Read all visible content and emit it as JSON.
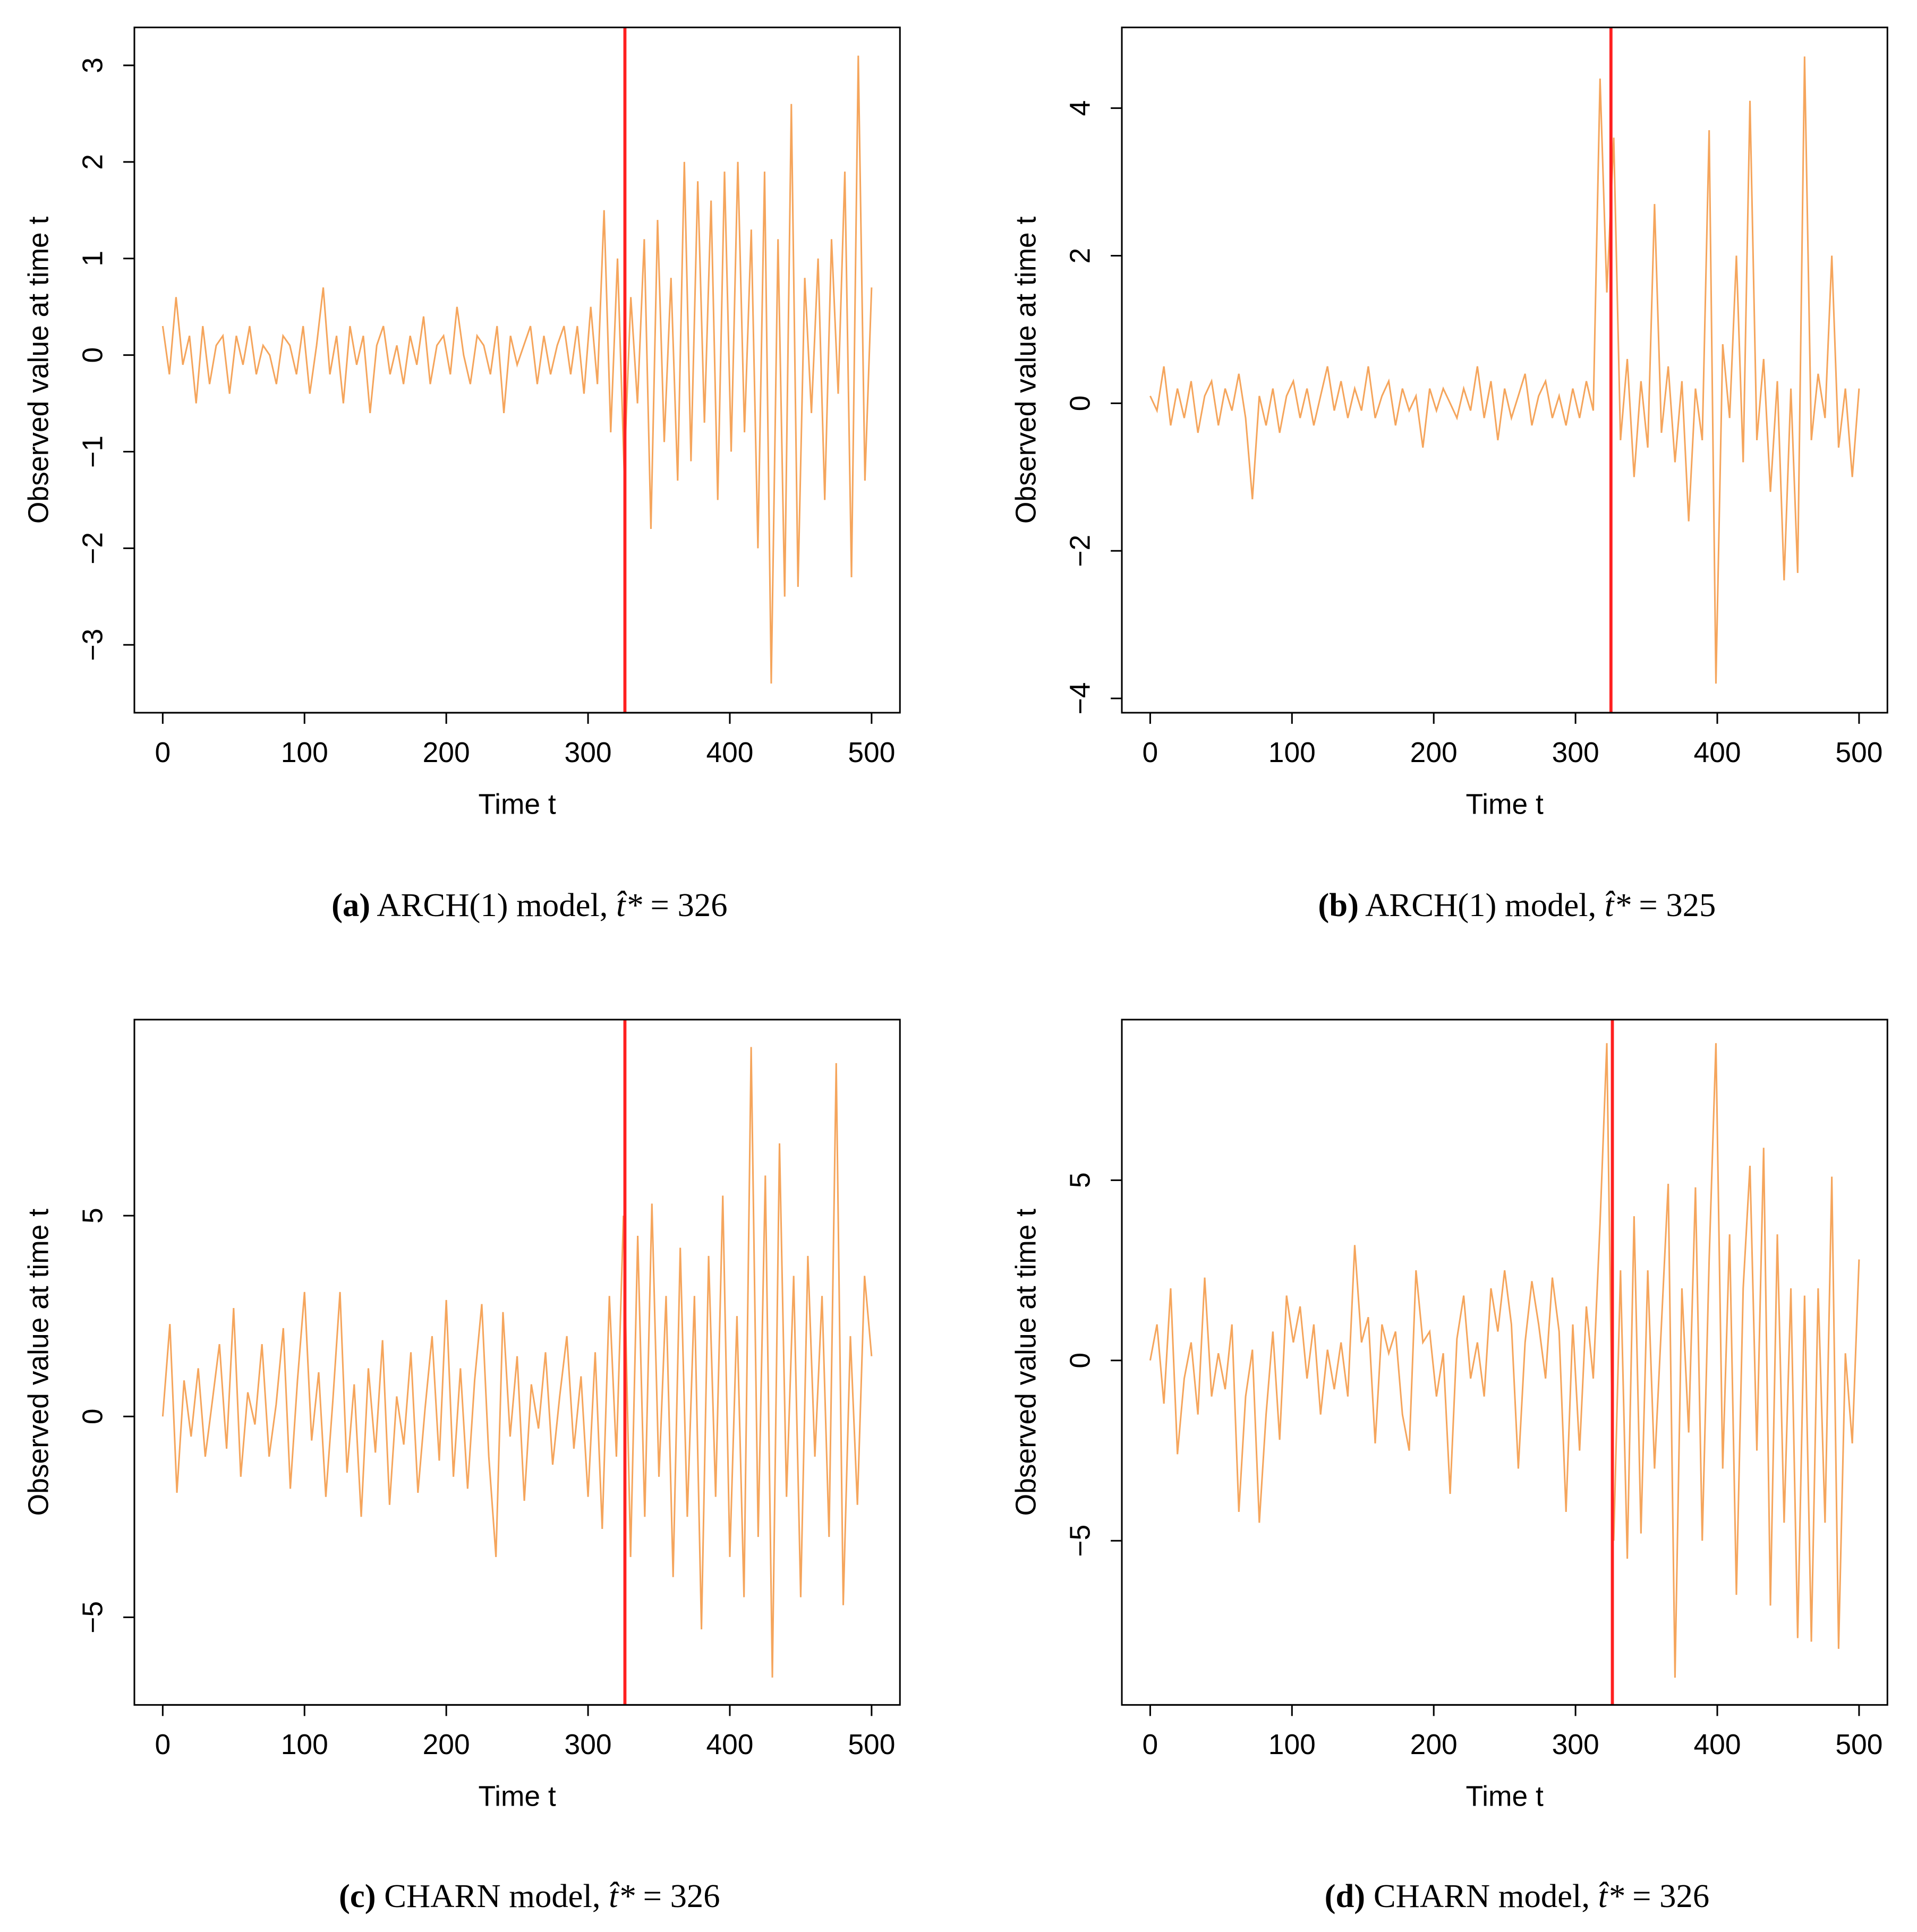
{
  "colors": {
    "series": "#f5a55c",
    "changepoint": "#ff2020",
    "axis": "#000000"
  },
  "chart_data": [
    {
      "type": "line",
      "id": "a",
      "xlabel": "Time t",
      "ylabel": "Observed value at time t",
      "xlim": [
        0,
        500
      ],
      "ylim": [
        -3.44,
        3.13
      ],
      "xticks": [
        "0",
        "100",
        "200",
        "300",
        "400",
        "500"
      ],
      "yticks": [
        "-3",
        "-2",
        "-1",
        "0",
        "1",
        "2",
        "3"
      ],
      "ytick_values": [
        -3,
        -2,
        -1,
        0,
        1,
        2,
        3
      ],
      "changepoint": 326,
      "caption_tag": "(a)",
      "caption_text": " ARCH(1) model, ",
      "caption_value": " = 326",
      "values": [
        0.3,
        -0.2,
        0.6,
        -0.1,
        0.2,
        -0.5,
        0.3,
        -0.3,
        0.1,
        0.2,
        -0.4,
        0.2,
        -0.1,
        0.3,
        -0.2,
        0.1,
        0.0,
        -0.3,
        0.2,
        0.1,
        -0.2,
        0.3,
        -0.4,
        0.1,
        0.7,
        -0.2,
        0.2,
        -0.5,
        0.3,
        -0.1,
        0.2,
        -0.6,
        0.1,
        0.3,
        -0.2,
        0.1,
        -0.3,
        0.2,
        -0.1,
        0.4,
        -0.3,
        0.1,
        0.2,
        -0.2,
        0.5,
        0.0,
        -0.3,
        0.2,
        0.1,
        -0.2,
        0.3,
        -0.6,
        0.2,
        -0.1,
        0.1,
        0.3,
        -0.3,
        0.2,
        -0.2,
        0.1,
        0.3,
        -0.2,
        0.3,
        -0.4,
        0.5,
        -0.3,
        1.5,
        -0.8,
        1.0,
        -1.2,
        0.6,
        -0.5,
        1.2,
        -1.8,
        1.4,
        -0.9,
        0.8,
        -1.3,
        2.0,
        -1.1,
        1.8,
        -0.7,
        1.6,
        -1.5,
        1.9,
        -1.0,
        2.0,
        -0.8,
        1.3,
        -2.0,
        1.9,
        -3.4,
        1.2,
        -2.5,
        2.6,
        -2.4,
        0.8,
        -0.6,
        1.0,
        -1.5,
        1.2,
        -0.4,
        1.9,
        -2.3,
        3.1,
        -1.3,
        0.7
      ]
    },
    {
      "type": "line",
      "id": "b",
      "xlabel": "Time t",
      "ylabel": "Observed value at time t",
      "xlim": [
        0,
        500
      ],
      "ylim": [
        -3.85,
        4.75
      ],
      "xticks": [
        "0",
        "100",
        "200",
        "300",
        "400",
        "500"
      ],
      "yticks": [
        "-4",
        "-2",
        "0",
        "2",
        "4"
      ],
      "ytick_values": [
        -4,
        -2,
        0,
        2,
        4
      ],
      "changepoint": 325,
      "caption_tag": "(b)",
      "caption_text": " ARCH(1) model, ",
      "caption_value": " = 325",
      "values": [
        0.1,
        -0.1,
        0.5,
        -0.3,
        0.2,
        -0.2,
        0.3,
        -0.4,
        0.1,
        0.3,
        -0.3,
        0.2,
        -0.1,
        0.4,
        -0.2,
        -1.3,
        0.1,
        -0.3,
        0.2,
        -0.4,
        0.1,
        0.3,
        -0.2,
        0.2,
        -0.3,
        0.1,
        0.5,
        -0.1,
        0.3,
        -0.2,
        0.2,
        -0.1,
        0.5,
        -0.2,
        0.1,
        0.3,
        -0.3,
        0.2,
        -0.1,
        0.1,
        -0.6,
        0.2,
        -0.1,
        0.2,
        0.0,
        -0.2,
        0.2,
        -0.1,
        0.5,
        -0.2,
        0.3,
        -0.5,
        0.2,
        -0.2,
        0.1,
        0.4,
        -0.3,
        0.1,
        0.3,
        -0.2,
        0.1,
        -0.3,
        0.2,
        -0.2,
        0.3,
        -0.1,
        4.4,
        1.5,
        3.6,
        -0.5,
        0.6,
        -1.0,
        0.3,
        -0.6,
        2.7,
        -0.4,
        0.5,
        -0.8,
        0.3,
        -1.6,
        0.2,
        -0.5,
        3.7,
        -3.8,
        0.8,
        -0.2,
        2.0,
        -0.8,
        4.1,
        -0.5,
        0.6,
        -1.2,
        0.3,
        -2.4,
        0.2,
        -2.3,
        4.7,
        -0.5,
        0.4,
        -0.2,
        2.0,
        -0.6,
        0.2,
        -1.0,
        0.2
      ]
    },
    {
      "type": "line",
      "id": "c",
      "xlabel": "Time t",
      "ylabel": "Observed value at time t",
      "xlim": [
        0,
        500
      ],
      "ylim": [
        -6.55,
        9.25
      ],
      "xticks": [
        "0",
        "100",
        "200",
        "300",
        "400",
        "500"
      ],
      "yticks": [
        "-5",
        "0",
        "5"
      ],
      "ytick_values": [
        -5,
        0,
        5
      ],
      "changepoint": 326,
      "caption_tag": "(c)",
      "caption_text": " CHARN model, ",
      "caption_value": " = 326",
      "values": [
        0.0,
        2.3,
        -1.9,
        0.9,
        -0.5,
        1.2,
        -1.0,
        0.4,
        1.8,
        -0.8,
        2.7,
        -1.5,
        0.6,
        -0.2,
        1.8,
        -1.0,
        0.3,
        2.2,
        -1.8,
        0.9,
        3.1,
        -0.6,
        1.1,
        -2.0,
        0.4,
        3.1,
        -1.4,
        0.8,
        -2.5,
        1.2,
        -0.9,
        1.9,
        -2.2,
        0.5,
        -0.7,
        1.6,
        -1.9,
        0.2,
        2.0,
        -1.1,
        2.9,
        -1.5,
        1.2,
        -1.8,
        0.9,
        2.8,
        -1.0,
        -3.5,
        2.6,
        -0.5,
        1.5,
        -2.1,
        0.8,
        -0.3,
        1.6,
        -1.2,
        0.5,
        2.0,
        -0.8,
        1.0,
        -2.0,
        1.6,
        -2.8,
        3.0,
        -1.0,
        5.0,
        -3.5,
        4.5,
        -2.5,
        5.3,
        -1.5,
        3.0,
        -4.0,
        4.2,
        -2.5,
        3.0,
        -5.3,
        4.0,
        -2.0,
        5.5,
        -3.5,
        2.5,
        -4.5,
        9.2,
        -3.0,
        6.0,
        -6.5,
        6.8,
        -2.0,
        3.5,
        -4.5,
        4.0,
        -1.0,
        3.0,
        -3.0,
        8.8,
        -4.7,
        2.0,
        -2.2,
        3.5,
        1.5
      ]
    },
    {
      "type": "line",
      "id": "d",
      "xlabel": "Time t",
      "ylabel": "Observed value at time t",
      "xlim": [
        0,
        500
      ],
      "ylim": [
        -8.85,
        8.75
      ],
      "xticks": [
        "0",
        "100",
        "200",
        "300",
        "400",
        "500"
      ],
      "yticks": [
        "-5",
        "0",
        "5"
      ],
      "ytick_values": [
        -5,
        0,
        5
      ],
      "changepoint": 326,
      "caption_tag": "(d)",
      "caption_text": " CHARN model, ",
      "caption_value": " = 326",
      "values": [
        0.0,
        1.0,
        -1.2,
        2.0,
        -2.6,
        -0.5,
        0.5,
        -1.5,
        2.3,
        -1.0,
        0.2,
        -0.8,
        1.0,
        -4.2,
        -1.0,
        0.3,
        -4.5,
        -1.5,
        0.8,
        -2.2,
        1.8,
        0.5,
        1.5,
        -0.5,
        1.0,
        -1.5,
        0.3,
        -0.8,
        0.5,
        -1.0,
        3.2,
        0.5,
        1.2,
        -2.3,
        1.0,
        0.2,
        0.8,
        -1.5,
        -2.5,
        2.5,
        0.5,
        0.8,
        -1.0,
        0.2,
        -3.7,
        0.6,
        1.8,
        -0.5,
        0.5,
        -1.0,
        2.0,
        0.8,
        2.5,
        1.0,
        -3.0,
        0.5,
        2.2,
        1.0,
        -0.5,
        2.3,
        0.8,
        -4.2,
        1.0,
        -2.5,
        1.5,
        -0.5,
        3.8,
        8.8,
        -5.0,
        2.5,
        -5.5,
        4.0,
        -4.8,
        2.5,
        -3.0,
        1.0,
        4.9,
        -8.8,
        2.0,
        -2.0,
        4.8,
        -5.0,
        2.8,
        8.8,
        -3.0,
        3.5,
        -6.5,
        2.0,
        5.4,
        -2.5,
        5.9,
        -6.8,
        3.5,
        -4.5,
        2.0,
        -7.7,
        1.8,
        -7.8,
        2.0,
        -4.5,
        5.1,
        -8.0,
        0.2,
        -2.3,
        2.8
      ]
    }
  ]
}
